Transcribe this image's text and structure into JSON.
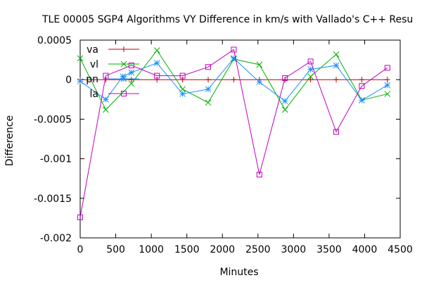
{
  "chart_data": {
    "type": "line",
    "title": "TLE 00005 SGP4 Algorithms VY Difference in km/s with Vallado's C++ Resu",
    "xlabel": "Minutes",
    "ylabel": "Difference",
    "xlim": [
      0,
      4500
    ],
    "ylim": [
      -0.002,
      0.0005
    ],
    "xticks": [
      0,
      500,
      1000,
      1500,
      2000,
      2500,
      3000,
      3500,
      4000,
      4500
    ],
    "xtick_labels": [
      "0",
      "500",
      "1000",
      "1500",
      "2000",
      "2500",
      "3000",
      "3500",
      "4000",
      "4500"
    ],
    "yticks": [
      0.0005,
      0,
      -0.0005,
      -0.001,
      -0.0015,
      -0.002
    ],
    "ytick_labels": [
      "0.0005",
      "0",
      "-0.0005",
      "-0.001",
      "-0.0015",
      "-0.002"
    ],
    "legend_position": "top-left",
    "x": [
      0,
      360,
      720,
      1080,
      1440,
      1800,
      2160,
      2520,
      2880,
      3240,
      3600,
      3960,
      4320
    ],
    "series": [
      {
        "name": "va",
        "color": "#c00000",
        "marker": "plus",
        "values": [
          0,
          0,
          0,
          0,
          0,
          0,
          0,
          0,
          0,
          0,
          0,
          0,
          0
        ]
      },
      {
        "name": "vl",
        "color": "#00b000",
        "marker": "cross",
        "values": [
          0.00027,
          -0.00038,
          -5e-05,
          0.00037,
          -0.00012,
          -0.00029,
          0.00026,
          0.00019,
          -0.00038,
          4e-05,
          0.00032,
          -0.00026,
          -0.00018
        ]
      },
      {
        "name": "pn",
        "color": "#1e90ff",
        "marker": "star",
        "x": [
          0,
          360,
          600,
          720,
          1080,
          1440,
          1800,
          2160,
          2520,
          2880,
          3240,
          3600,
          3960,
          4320
        ],
        "values": [
          -2e-05,
          -0.00025,
          4e-05,
          9e-05,
          0.00021,
          -0.00018,
          -0.00012,
          0.00027,
          -3e-05,
          -0.00027,
          0.00013,
          0.00018,
          -0.00026,
          -7e-05
        ]
      },
      {
        "name": "la",
        "color": "#c000c0",
        "marker": "square",
        "values": [
          -0.00174,
          5e-05,
          0.00018,
          5e-05,
          5e-05,
          0.00016,
          0.00038,
          -0.0012,
          2e-05,
          0.00023,
          -0.00066,
          -8e-05,
          0.00015
        ]
      }
    ]
  }
}
